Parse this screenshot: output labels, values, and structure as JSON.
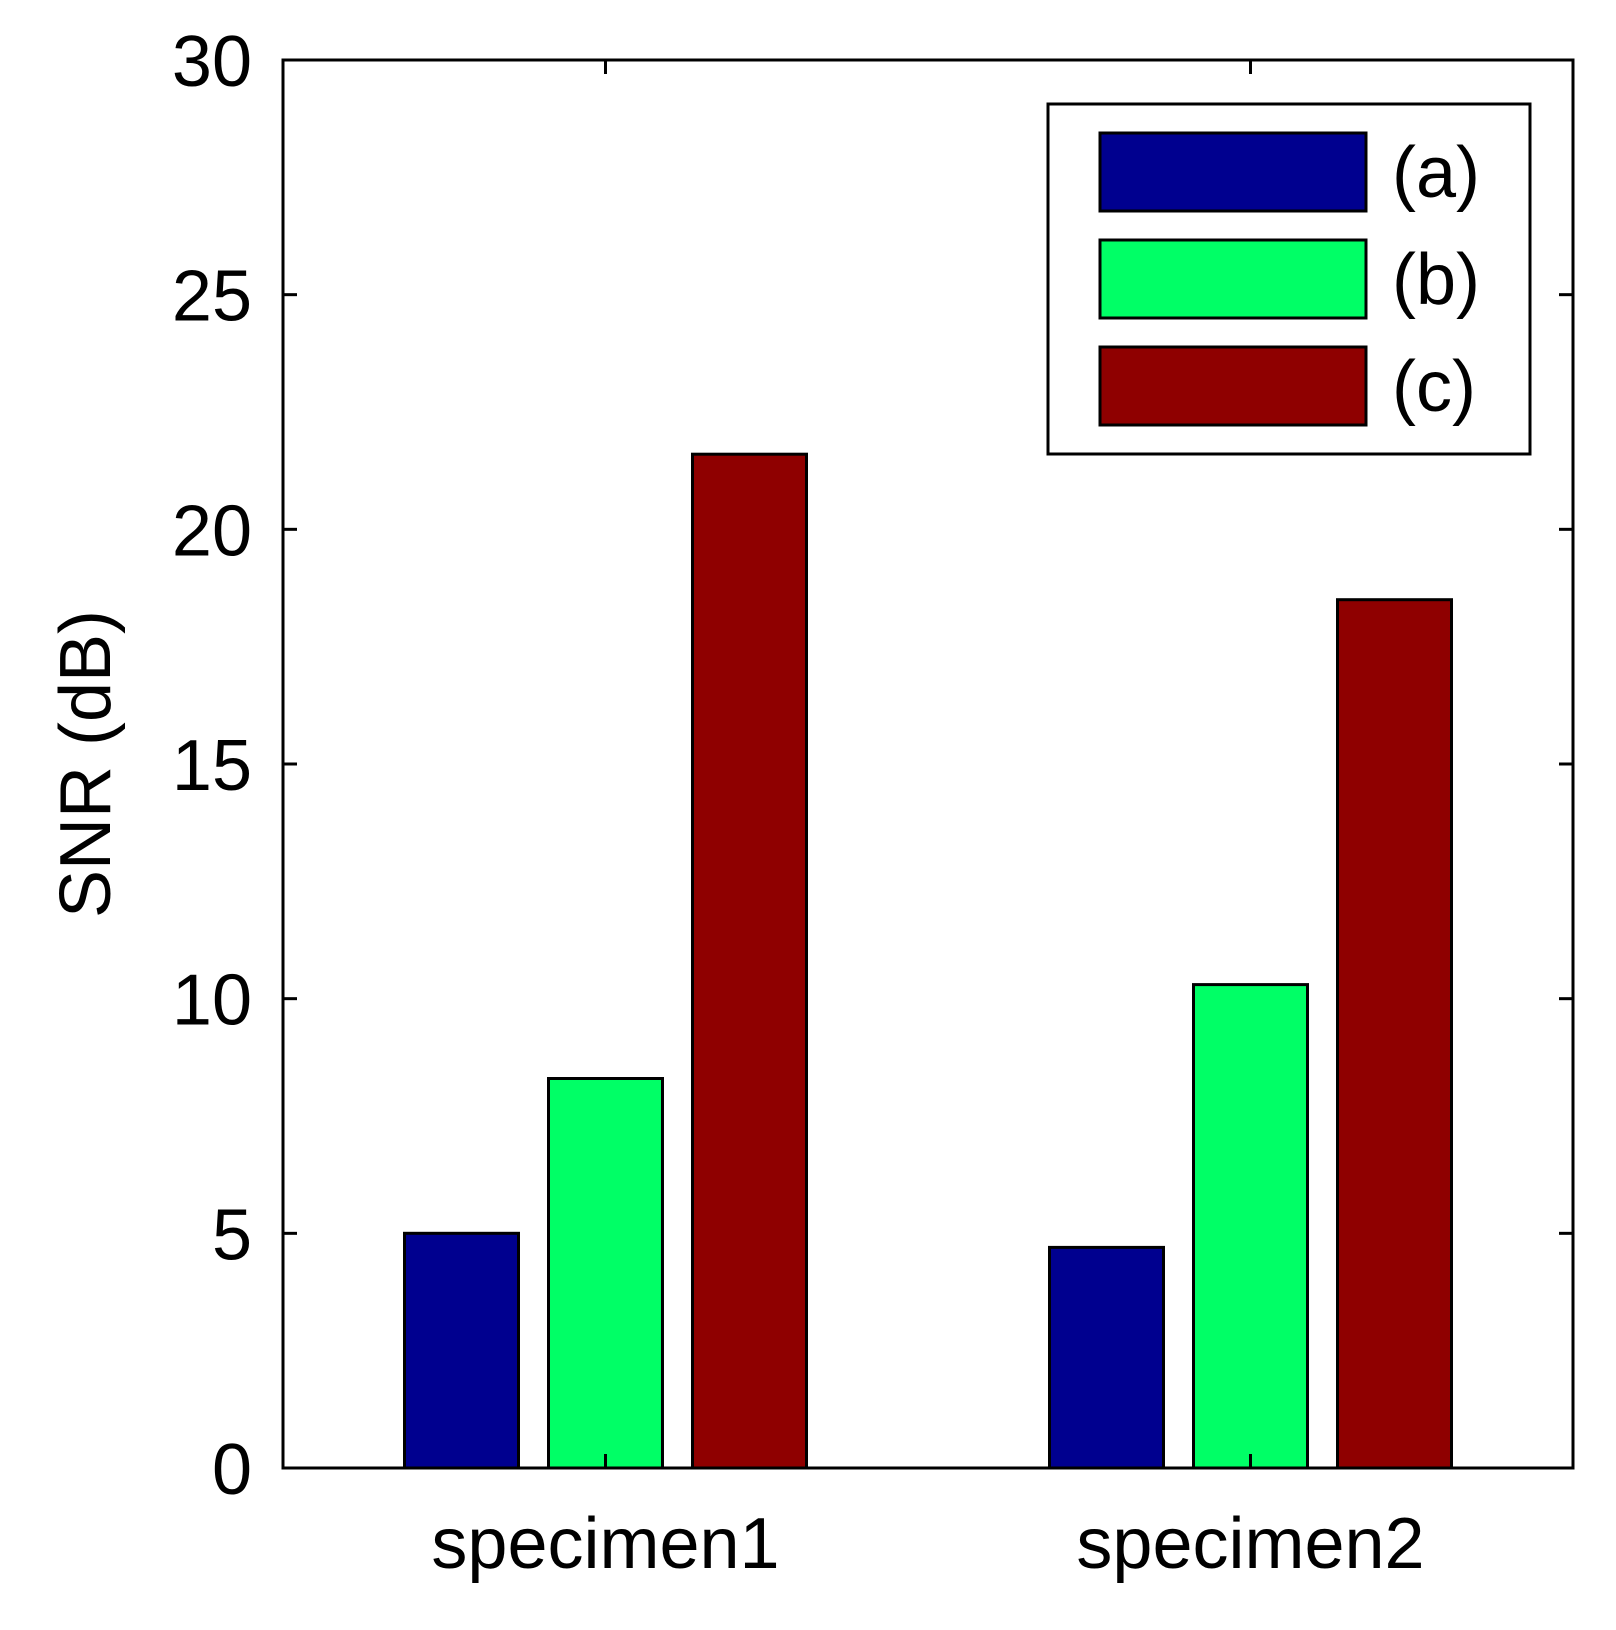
{
  "chart_data": {
    "type": "bar",
    "title": "",
    "xlabel": "",
    "ylabel": "SNR (dB)",
    "ylim": [
      0,
      30
    ],
    "yticks": [
      "0",
      "5",
      "10",
      "15",
      "20",
      "25",
      "30"
    ],
    "categories": [
      "specimen1",
      "specimen2"
    ],
    "series": [
      {
        "name": "(a)",
        "color": "#00008f",
        "values": [
          5.0,
          4.7
        ]
      },
      {
        "name": "(b)",
        "color": "#00ff66",
        "values": [
          8.3,
          10.3
        ]
      },
      {
        "name": "(c)",
        "color": "#8f0000",
        "values": [
          21.6,
          18.5
        ]
      }
    ],
    "legend_position": "top-right",
    "grid": false
  }
}
